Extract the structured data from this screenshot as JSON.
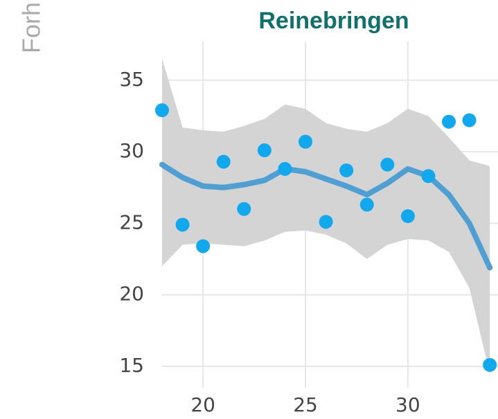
{
  "chart_data": {
    "type": "scatter",
    "title": "Reinebringen",
    "y_label": "Forh",
    "x": [
      18,
      19,
      20,
      21,
      22,
      23,
      24,
      25,
      26,
      27,
      28,
      29,
      30,
      31,
      32,
      33,
      34
    ],
    "values": [
      32.9,
      24.9,
      23.4,
      29.3,
      26.0,
      30.1,
      28.8,
      30.7,
      25.1,
      28.7,
      26.3,
      29.1,
      25.5,
      28.3,
      32.1,
      32.2,
      15.1
    ],
    "color": "#12a8ee",
    "smooth": {
      "values": [
        29.1,
        28.2,
        27.6,
        27.5,
        27.7,
        28.0,
        28.8,
        28.6,
        28.1,
        27.6,
        27.0,
        27.8,
        28.8,
        28.3,
        27.0,
        25.0,
        21.9
      ],
      "lower": [
        22.0,
        23.5,
        23.6,
        23.5,
        23.4,
        23.8,
        24.4,
        24.5,
        24.2,
        23.6,
        22.5,
        23.5,
        23.9,
        23.8,
        23.0,
        20.5,
        14.5
      ],
      "upper": [
        36.5,
        31.7,
        31.5,
        31.4,
        31.8,
        32.3,
        33.3,
        33.0,
        32.0,
        31.6,
        31.4,
        32.0,
        33.0,
        32.5,
        31.0,
        29.4,
        29.0
      ],
      "color": "#4f9fd3",
      "band_color": "#d4d4d4"
    },
    "xlim": [
      18,
      34.4
    ],
    "ylim": [
      13.5,
      37.7
    ],
    "xticks": [
      20,
      25,
      30
    ],
    "yticks": [
      15,
      20,
      25,
      30,
      35
    ],
    "grid": true
  }
}
